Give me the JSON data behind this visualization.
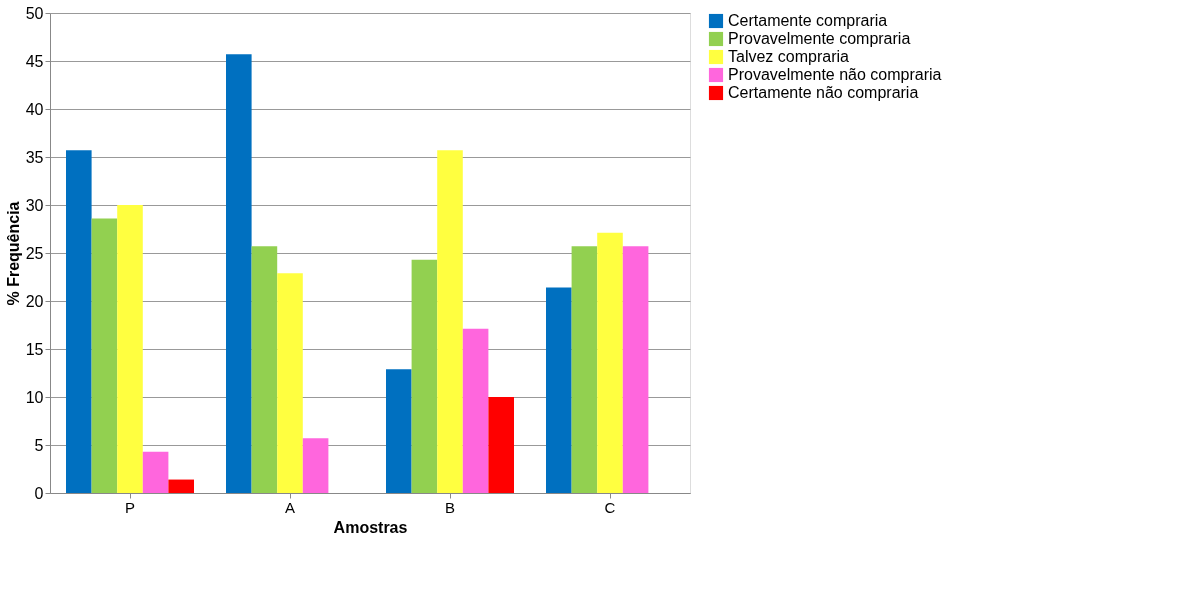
{
  "chart_data": {
    "type": "bar",
    "xlabel": "Amostras",
    "ylabel": "% Frequência",
    "categories": [
      "P",
      "A",
      "B",
      "C"
    ],
    "series": [
      {
        "name": "Certamente compraria",
        "color": "#0070c0",
        "values": [
          35.7,
          45.7,
          12.9,
          21.4
        ]
      },
      {
        "name": "Provavelmente compraria",
        "color": "#92d050",
        "values": [
          28.6,
          25.7,
          24.3,
          25.7
        ]
      },
      {
        "name": "Talvez compraria",
        "color": "#ffff40",
        "values": [
          30.0,
          22.9,
          35.7,
          27.1
        ]
      },
      {
        "name": "Provavelmente não compraria",
        "color": "#ff66dd",
        "values": [
          4.3,
          5.7,
          17.1,
          25.7
        ]
      },
      {
        "name": "Certamente não compraria",
        "color": "#ff0000",
        "values": [
          1.4,
          0,
          10.0,
          0
        ]
      }
    ],
    "ylim": [
      0,
      50
    ],
    "yticks": [
      0,
      5,
      10,
      15,
      20,
      25,
      30,
      35,
      40,
      45,
      50
    ],
    "grid": "y",
    "legend": "right"
  }
}
